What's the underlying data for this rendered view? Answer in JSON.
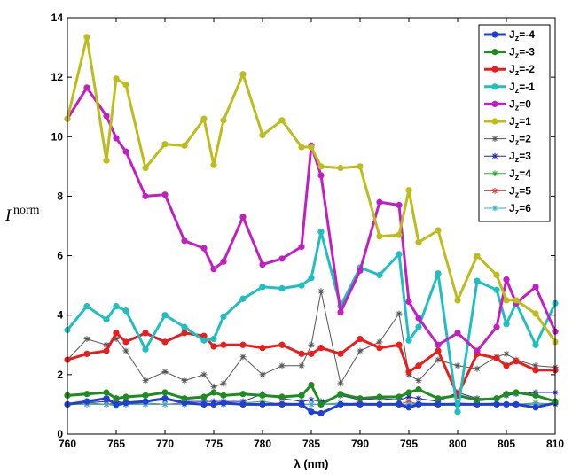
{
  "chart_data": {
    "type": "line",
    "title": "",
    "xlabel": "λ (nm)",
    "ylabel_main": "I",
    "ylabel_sup": "norm",
    "xlim": [
      760,
      810
    ],
    "ylim": [
      0,
      14
    ],
    "xticks": [
      760,
      765,
      770,
      775,
      780,
      785,
      790,
      795,
      800,
      805,
      810
    ],
    "yticks": [
      0,
      2,
      4,
      6,
      8,
      10,
      12,
      14
    ],
    "legend_position": "top-right",
    "x": [
      760,
      762,
      764,
      765,
      766,
      768,
      770,
      772,
      774,
      775,
      776,
      778,
      780,
      782,
      784,
      785,
      786,
      788,
      790,
      792,
      794,
      795,
      796,
      798,
      800,
      802,
      804,
      805,
      806,
      808,
      810
    ],
    "series": [
      {
        "name": "J=-4",
        "base": "J",
        "sub": "z",
        "suffix": "=-4",
        "color": "#1f3fd6",
        "width": 3,
        "marker": "dot",
        "values": [
          1.0,
          1.1,
          1.2,
          1.0,
          1.05,
          1.1,
          1.2,
          1.05,
          1.0,
          1.0,
          1.05,
          1.0,
          1.0,
          1.0,
          1.0,
          0.75,
          0.7,
          1.0,
          1.0,
          1.0,
          1.0,
          0.9,
          1.0,
          1.0,
          1.0,
          1.0,
          1.0,
          1.0,
          1.0,
          0.9,
          1.05
        ]
      },
      {
        "name": "J=-3",
        "base": "J",
        "sub": "z",
        "suffix": "=-3",
        "color": "#1f8c1f",
        "width": 3,
        "marker": "dot",
        "values": [
          1.3,
          1.35,
          1.4,
          1.2,
          1.25,
          1.3,
          1.4,
          1.2,
          1.25,
          1.4,
          1.3,
          1.35,
          1.3,
          1.25,
          1.3,
          1.65,
          1.0,
          1.35,
          1.2,
          1.25,
          1.25,
          1.4,
          1.5,
          1.2,
          1.3,
          1.15,
          1.2,
          1.35,
          1.4,
          1.3,
          1.1
        ]
      },
      {
        "name": "J=-2",
        "base": "J",
        "sub": "z",
        "suffix": "=-2",
        "color": "#e81d1d",
        "width": 3,
        "marker": "dot",
        "values": [
          2.5,
          2.7,
          2.8,
          3.4,
          3.1,
          3.4,
          3.1,
          3.4,
          3.3,
          2.95,
          3.0,
          3.0,
          2.9,
          3.0,
          2.7,
          2.7,
          2.9,
          2.7,
          3.2,
          2.9,
          3.0,
          2.1,
          2.3,
          2.8,
          1.3,
          2.7,
          2.55,
          2.3,
          2.45,
          2.15,
          2.15
        ]
      },
      {
        "name": "J=-1",
        "base": "J",
        "sub": "z",
        "suffix": "=-1",
        "color": "#1fbfbf",
        "width": 3,
        "marker": "dot",
        "values": [
          3.5,
          4.3,
          3.85,
          4.3,
          4.15,
          2.85,
          4.0,
          3.6,
          3.15,
          3.2,
          3.95,
          4.55,
          4.95,
          4.9,
          5.0,
          5.25,
          6.8,
          4.3,
          5.6,
          5.35,
          6.05,
          3.15,
          3.6,
          5.4,
          0.75,
          5.15,
          4.85,
          3.7,
          4.4,
          3.0,
          4.4
        ]
      },
      {
        "name": "J=0",
        "base": "J",
        "sub": "z",
        "suffix": "=0",
        "color": "#c21fc2",
        "width": 3,
        "marker": "dot",
        "values": [
          10.6,
          11.65,
          10.7,
          9.95,
          9.5,
          8.0,
          8.05,
          6.5,
          6.25,
          5.55,
          5.8,
          7.3,
          5.7,
          5.9,
          6.3,
          9.7,
          8.7,
          4.1,
          5.5,
          7.8,
          7.7,
          4.45,
          3.9,
          3.0,
          3.4,
          2.8,
          3.6,
          5.2,
          4.4,
          4.95,
          3.45
        ]
      },
      {
        "name": "J=1",
        "base": "J",
        "sub": "z",
        "suffix": "=1",
        "color": "#bcbc1c",
        "width": 3,
        "marker": "dot",
        "values": [
          10.6,
          13.35,
          9.2,
          11.95,
          11.75,
          8.95,
          9.75,
          9.7,
          10.6,
          9.05,
          10.55,
          12.1,
          10.05,
          10.55,
          9.65,
          9.65,
          9.0,
          8.95,
          9.0,
          6.65,
          6.7,
          8.2,
          6.45,
          6.85,
          4.5,
          6.0,
          5.35,
          4.5,
          4.5,
          4.05,
          3.1
        ]
      },
      {
        "name": "J=2",
        "base": "J",
        "sub": "z",
        "suffix": "=2",
        "color": "#555555",
        "width": 1,
        "marker": "star",
        "values": [
          2.5,
          3.2,
          3.0,
          3.2,
          2.8,
          1.8,
          2.1,
          1.8,
          2.0,
          1.6,
          1.7,
          2.6,
          2.0,
          2.3,
          2.3,
          3.0,
          4.8,
          1.7,
          2.8,
          3.1,
          4.05,
          2.0,
          1.8,
          2.5,
          2.3,
          2.2,
          2.6,
          2.7,
          2.5,
          2.3,
          2.25
        ]
      },
      {
        "name": "J=3",
        "base": "J",
        "sub": "z",
        "suffix": "=3",
        "color": "#2424b8",
        "width": 1,
        "marker": "star",
        "values": [
          1.0,
          1.05,
          1.1,
          1.1,
          1.05,
          1.1,
          1.15,
          1.1,
          1.1,
          1.1,
          1.1,
          1.1,
          1.35,
          1.2,
          1.1,
          1.15,
          1.1,
          1.3,
          1.15,
          1.2,
          1.15,
          1.25,
          1.2,
          1.1,
          1.4,
          1.2,
          1.2,
          1.3,
          1.35,
          1.4,
          1.4
        ]
      },
      {
        "name": "J=4",
        "base": "J",
        "sub": "z",
        "suffix": "=4",
        "color": "#3aa63a",
        "width": 1,
        "marker": "star",
        "values": [
          1.0,
          1.05,
          1.0,
          1.0,
          1.0,
          1.05,
          1.0,
          1.0,
          1.05,
          1.0,
          1.0,
          1.05,
          1.1,
          1.0,
          1.0,
          1.0,
          1.0,
          1.05,
          1.0,
          1.0,
          1.0,
          1.0,
          1.05,
          1.0,
          1.0,
          1.0,
          1.05,
          1.0,
          1.0,
          1.05,
          1.0
        ]
      },
      {
        "name": "J=5",
        "base": "J",
        "sub": "z",
        "suffix": "=5",
        "color": "#d63a3a",
        "width": 1,
        "marker": "star",
        "values": [
          1.0,
          1.0,
          1.0,
          1.05,
          1.0,
          1.0,
          1.0,
          1.05,
          1.0,
          1.0,
          1.0,
          1.0,
          1.0,
          1.05,
          1.0,
          1.0,
          1.0,
          1.0,
          1.05,
          1.0,
          1.0,
          1.1,
          1.0,
          1.0,
          1.05,
          1.0,
          1.0,
          1.0,
          1.0,
          1.0,
          1.0
        ]
      },
      {
        "name": "J=6",
        "base": "J",
        "sub": "z",
        "suffix": "=6",
        "color": "#3ab0c8",
        "width": 1,
        "marker": "star",
        "values": [
          1.0,
          1.0,
          1.0,
          0.95,
          1.0,
          1.0,
          1.0,
          1.0,
          1.0,
          1.0,
          1.0,
          1.0,
          1.0,
          1.0,
          1.0,
          1.0,
          1.0,
          1.0,
          1.0,
          1.0,
          1.0,
          1.0,
          1.0,
          1.0,
          1.0,
          1.0,
          1.0,
          1.0,
          1.0,
          1.0,
          1.0
        ]
      }
    ]
  }
}
